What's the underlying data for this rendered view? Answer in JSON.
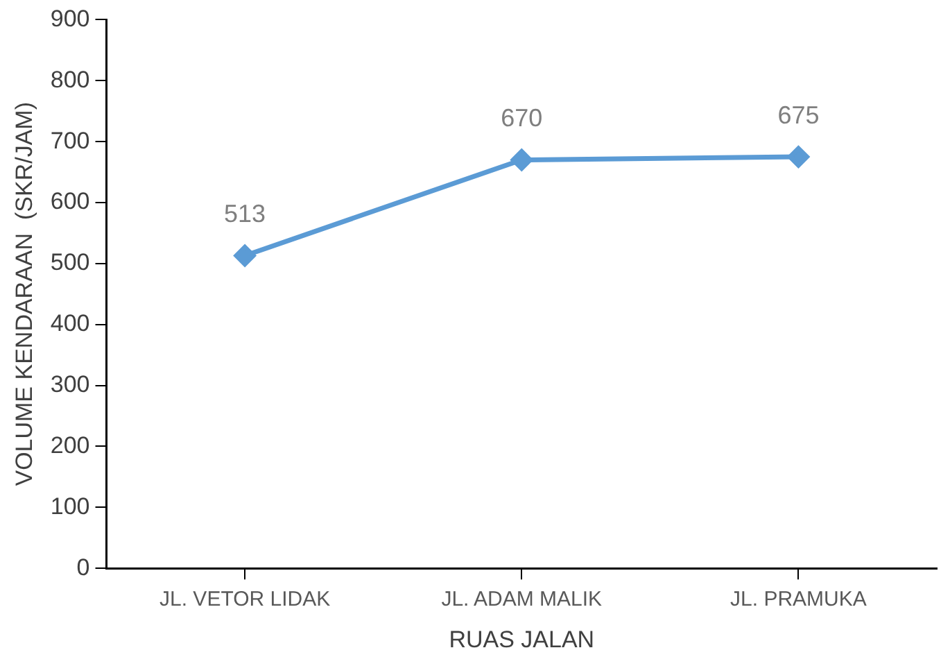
{
  "chart_data": {
    "type": "line",
    "xlabel": "RUAS JALAN",
    "ylabel": "VOLUME KENDARAAN  (SKR/JAM)",
    "categories": [
      "JL. VETOR LIDAK",
      "JL. ADAM MALIK",
      "JL. PRAMUKA"
    ],
    "series": [
      {
        "color": "#5b9bd5",
        "values": [
          513,
          670,
          675
        ]
      }
    ],
    "ylim": [
      0,
      900
    ],
    "yticks": [
      0,
      100,
      200,
      300,
      400,
      500,
      600,
      700,
      800,
      900
    ],
    "grid": false,
    "legend": false,
    "marker": "diamond",
    "line_style": "solid",
    "data_labels": true
  }
}
